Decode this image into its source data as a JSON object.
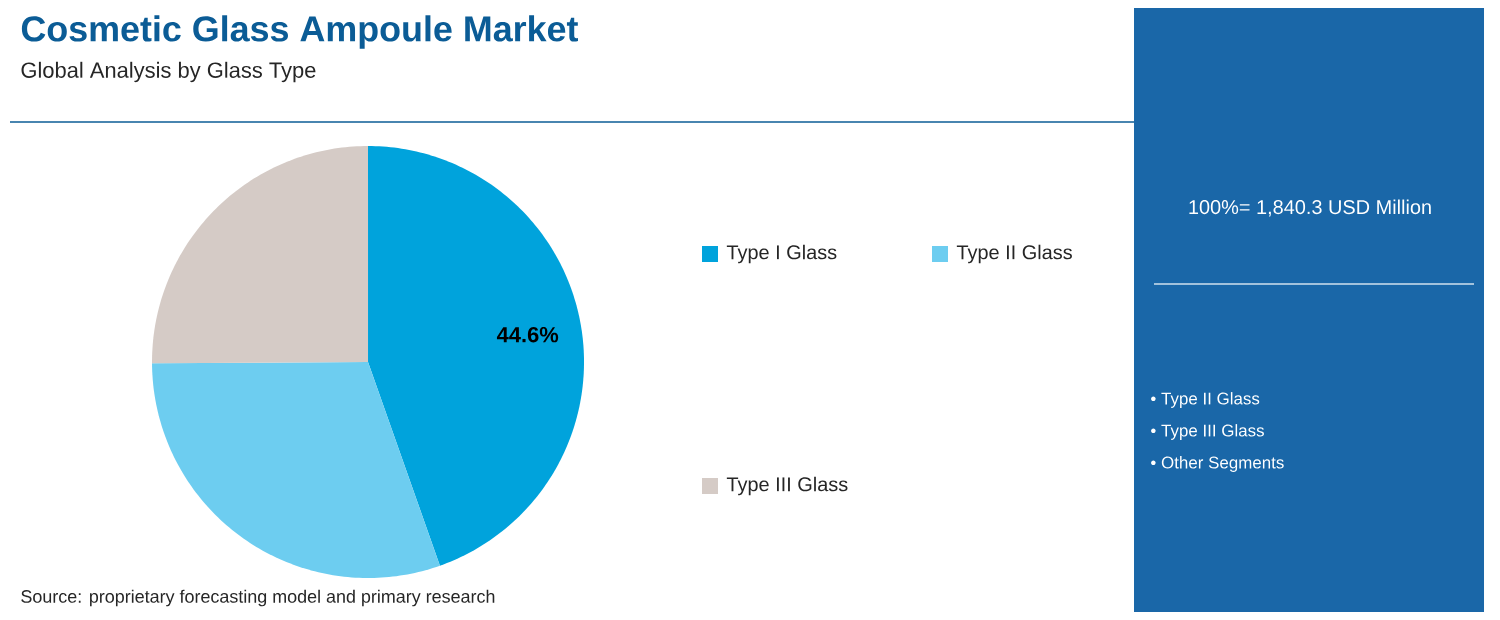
{
  "chart_data": {
    "type": "pie",
    "title": "Cosmetic Glass Ampoule Market",
    "subtitle": "Global Analysis by Glass Type",
    "categories": [
      "Type I Glass",
      "Type II Glass",
      "Type III Glass"
    ],
    "values": [
      44.6,
      30.3,
      25.1
    ],
    "colors": [
      "#00a3dc",
      "#6dcdf0",
      "#d5cbc6"
    ],
    "value_labels": [
      "44.6%",
      null,
      null
    ],
    "legend": "right",
    "annotations": [
      "100%= 1,840.3 USD Million",
      "• Type II Glass",
      "• Type III Glass",
      "• Other Segments",
      "Source: proprietary forecasting model and primary research"
    ]
  }
}
